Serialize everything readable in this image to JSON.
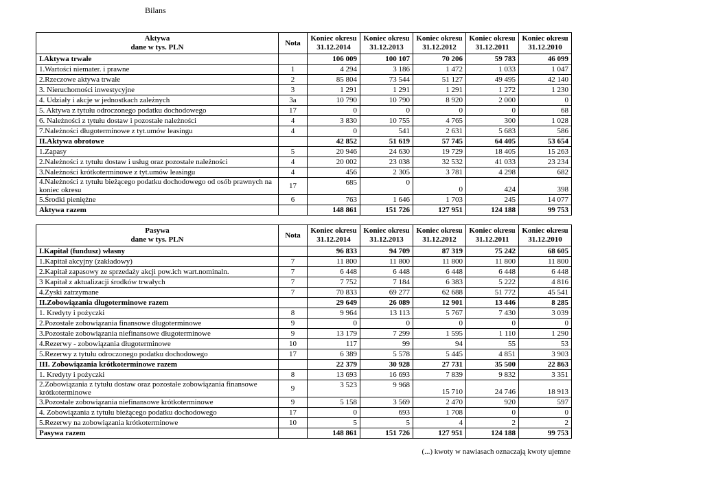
{
  "page_title": "Bilans",
  "footer_note": "(...) kwoty w nawiasach oznaczają kwoty ujemne",
  "tables": [
    {
      "title": "Aktywa",
      "subtitle": "dane w tys. PLN",
      "nota_header": "Nota",
      "period_headers": [
        {
          "line1": "Koniec okresu",
          "line2": "31.12.2014"
        },
        {
          "line1": "Koniec okresu",
          "line2": "31.12.2013"
        },
        {
          "line1": "Koniec okresu",
          "line2": "31.12.2012"
        },
        {
          "line1": "Koniec okresu",
          "line2": "31.12.2011"
        },
        {
          "line1": "Koniec okresu",
          "line2": "31.12.2010"
        }
      ],
      "rows": [
        {
          "label": "I.Aktywa trwałe",
          "nota": "",
          "bold": true,
          "values": [
            "106 009",
            "100 107",
            "70 206",
            "59 783",
            "46 099"
          ]
        },
        {
          "label": "1.Wartości niemater. i prawne",
          "nota": "1",
          "bold": false,
          "values": [
            "4 294",
            "3 186",
            "1 472",
            "1 033",
            "1 047"
          ]
        },
        {
          "label": "2.Rzeczowe aktywa trwałe",
          "nota": "2",
          "bold": false,
          "values": [
            "85 804",
            "73 544",
            "51 127",
            "49 495",
            "42 140"
          ]
        },
        {
          "label": "3. Nieruchomości inwestycyjne",
          "nota": "3",
          "bold": false,
          "values": [
            "1 291",
            "1 291",
            "1 291",
            "1 272",
            "1 230"
          ]
        },
        {
          "label": "4. Udziały i akcje w jednostkach zależnych",
          "nota": "3a",
          "bold": false,
          "values": [
            "10 790",
            "10 790",
            "8 920",
            "2 000",
            "0"
          ]
        },
        {
          "label": "5. Aktywa z tytułu odroczonego podatku dochodowego",
          "nota": "17",
          "bold": false,
          "values": [
            "0",
            "0",
            "0",
            "0",
            "68"
          ]
        },
        {
          "label": "6. Należności z tytułu dostaw i pozostałe należności",
          "nota": "4",
          "bold": false,
          "values": [
            "3 830",
            "10 755",
            "4 765",
            "300",
            "1 028"
          ]
        },
        {
          "label": "7.Należności długoterminowe z tyt.umów leasingu",
          "nota": "4",
          "bold": false,
          "values": [
            "0",
            "541",
            "2 631",
            "5 683",
            "586"
          ]
        },
        {
          "label": "II.Aktywa obrotowe",
          "nota": "",
          "bold": true,
          "values": [
            "42 852",
            "51 619",
            "57 745",
            "64 405",
            "53 654"
          ]
        },
        {
          "label": "1.Zapasy",
          "nota": "5",
          "bold": false,
          "values": [
            "20 946",
            "24 630",
            "19 729",
            "18 405",
            "15 263"
          ]
        },
        {
          "label": "2.Należności z tytułu dostaw i usług oraz pozostałe należności",
          "nota": "4",
          "bold": false,
          "values": [
            "20 002",
            "23 038",
            "32 532",
            "41 033",
            "23 234"
          ]
        },
        {
          "label": "3.Należności krótkoterminowe z tyt.umów leasingu",
          "nota": "4",
          "bold": false,
          "values": [
            "456",
            "2 305",
            "3 781",
            "4 298",
            "682"
          ]
        },
        {
          "label": "4.Należności z tytułu bieżącego podatku dochodowego od osób prawnych na koniec okresu",
          "nota": "17",
          "bold": false,
          "values": [
            "685",
            "0",
            "0",
            "424",
            "398"
          ]
        },
        {
          "label": "5.Środki pieniężne",
          "nota": "6",
          "bold": false,
          "values": [
            "763",
            "1 646",
            "1 703",
            "245",
            "14 077"
          ]
        },
        {
          "label": "Aktywa razem",
          "nota": "",
          "bold": true,
          "values": [
            "148 861",
            "151 726",
            "127 951",
            "124 188",
            "99 753"
          ]
        }
      ]
    },
    {
      "title": "Pasywa",
      "subtitle": "dane w tys. PLN",
      "nota_header": "Nota",
      "period_headers": [
        {
          "line1": "Koniec okresu",
          "line2": "31.12.2014"
        },
        {
          "line1": "Koniec okresu",
          "line2": "31.12.2013"
        },
        {
          "line1": "Koniec okresu",
          "line2": "31.12.2012"
        },
        {
          "line1": "Koniec okresu",
          "line2": "31.12.2011"
        },
        {
          "line1": "Koniec okresu",
          "line2": "31.12.2010"
        }
      ],
      "rows": [
        {
          "label": "I.Kapitał (fundusz) własny",
          "nota": "",
          "bold": true,
          "values": [
            "96 833",
            "94 709",
            "87 319",
            "75 242",
            "68 605"
          ]
        },
        {
          "label": "1.Kapitał akcyjny (zakładowy)",
          "nota": "7",
          "bold": false,
          "values": [
            "11 800",
            "11 800",
            "11 800",
            "11 800",
            "11 800"
          ]
        },
        {
          "label": "2.Kapitał zapasowy ze sprzedaży akcji pow.ich wart.nominaln.",
          "nota": "7",
          "bold": false,
          "values": [
            "6 448",
            "6 448",
            "6 448",
            "6 448",
            "6 448"
          ]
        },
        {
          "label": "3 Kapitał z aktualizacji środków trwałych",
          "nota": "7",
          "bold": false,
          "values": [
            "7 752",
            "7 184",
            "6 383",
            "5 222",
            "4 816"
          ]
        },
        {
          "label": "4.Zyski zatrzymane",
          "nota": "7",
          "bold": false,
          "values": [
            "70 833",
            "69 277",
            "62 688",
            "51 772",
            "45 541"
          ]
        },
        {
          "label": "II.Zobowiązania długoterminowe razem",
          "nota": "",
          "bold": true,
          "values": [
            "29 649",
            "26 089",
            "12 901",
            "13 446",
            "8 285"
          ]
        },
        {
          "label": "1. Kredyty i pożyczki",
          "nota": "8",
          "bold": false,
          "values": [
            "9 964",
            "13 113",
            "5 767",
            "7 430",
            "3 039"
          ]
        },
        {
          "label": "2.Pozostałe zobowiązania finansowe długoterminowe",
          "nota": "9",
          "bold": false,
          "values": [
            "0",
            "0",
            "0",
            "0",
            "0"
          ]
        },
        {
          "label": "3.Pozostałe zobowiązania niefinansowe długoterminowe",
          "nota": "9",
          "bold": false,
          "values": [
            "13 179",
            "7 299",
            "1 595",
            "1 110",
            "1 290"
          ]
        },
        {
          "label": "4.Rezerwy - zobowiązania długoterminowe",
          "nota": "10",
          "bold": false,
          "values": [
            "117",
            "99",
            "94",
            "55",
            "53"
          ]
        },
        {
          "label": "5.Rezerwy z tytułu odroczonego podatku dochodowego",
          "nota": "17",
          "bold": false,
          "values": [
            "6 389",
            "5 578",
            "5 445",
            "4 851",
            "3 903"
          ]
        },
        {
          "label": "III. Zobowiązania krótkoterminowe razem",
          "nota": "",
          "bold": true,
          "values": [
            "22 379",
            "30 928",
            "27 731",
            "35 500",
            "22 863"
          ]
        },
        {
          "label": "1. Kredyty i pożyczki",
          "nota": "8",
          "bold": false,
          "values": [
            "13 693",
            "16 693",
            "7 839",
            "9 832",
            "3 351"
          ]
        },
        {
          "label": "2.Zobowiązania z tytułu dostaw oraz pozostałe zobowiązania finansowe krótkoterminowe",
          "nota": "9",
          "bold": false,
          "values": [
            "3 523",
            "9 968",
            "15 710",
            "24 746",
            "18 913"
          ]
        },
        {
          "label": "3.Pozostałe zobowiązania niefinansowe krótkoterminowe",
          "nota": "9",
          "bold": false,
          "values": [
            "5 158",
            "3 569",
            "2 470",
            "920",
            "597"
          ]
        },
        {
          "label": "4. Zobowiązania z tytułu bieżącego podatku dochodowego",
          "nota": "17",
          "bold": false,
          "values": [
            "0",
            "693",
            "1 708",
            "0",
            "0"
          ]
        },
        {
          "label": "5.Rezerwy na zobowiązania krótkoterminowe",
          "nota": "10",
          "bold": false,
          "values": [
            "5",
            "5",
            "4",
            "2",
            "2"
          ]
        },
        {
          "label": "Pasywa razem",
          "nota": "",
          "bold": true,
          "values": [
            "148 861",
            "151 726",
            "127 951",
            "124 188",
            "99 753"
          ]
        }
      ]
    }
  ]
}
